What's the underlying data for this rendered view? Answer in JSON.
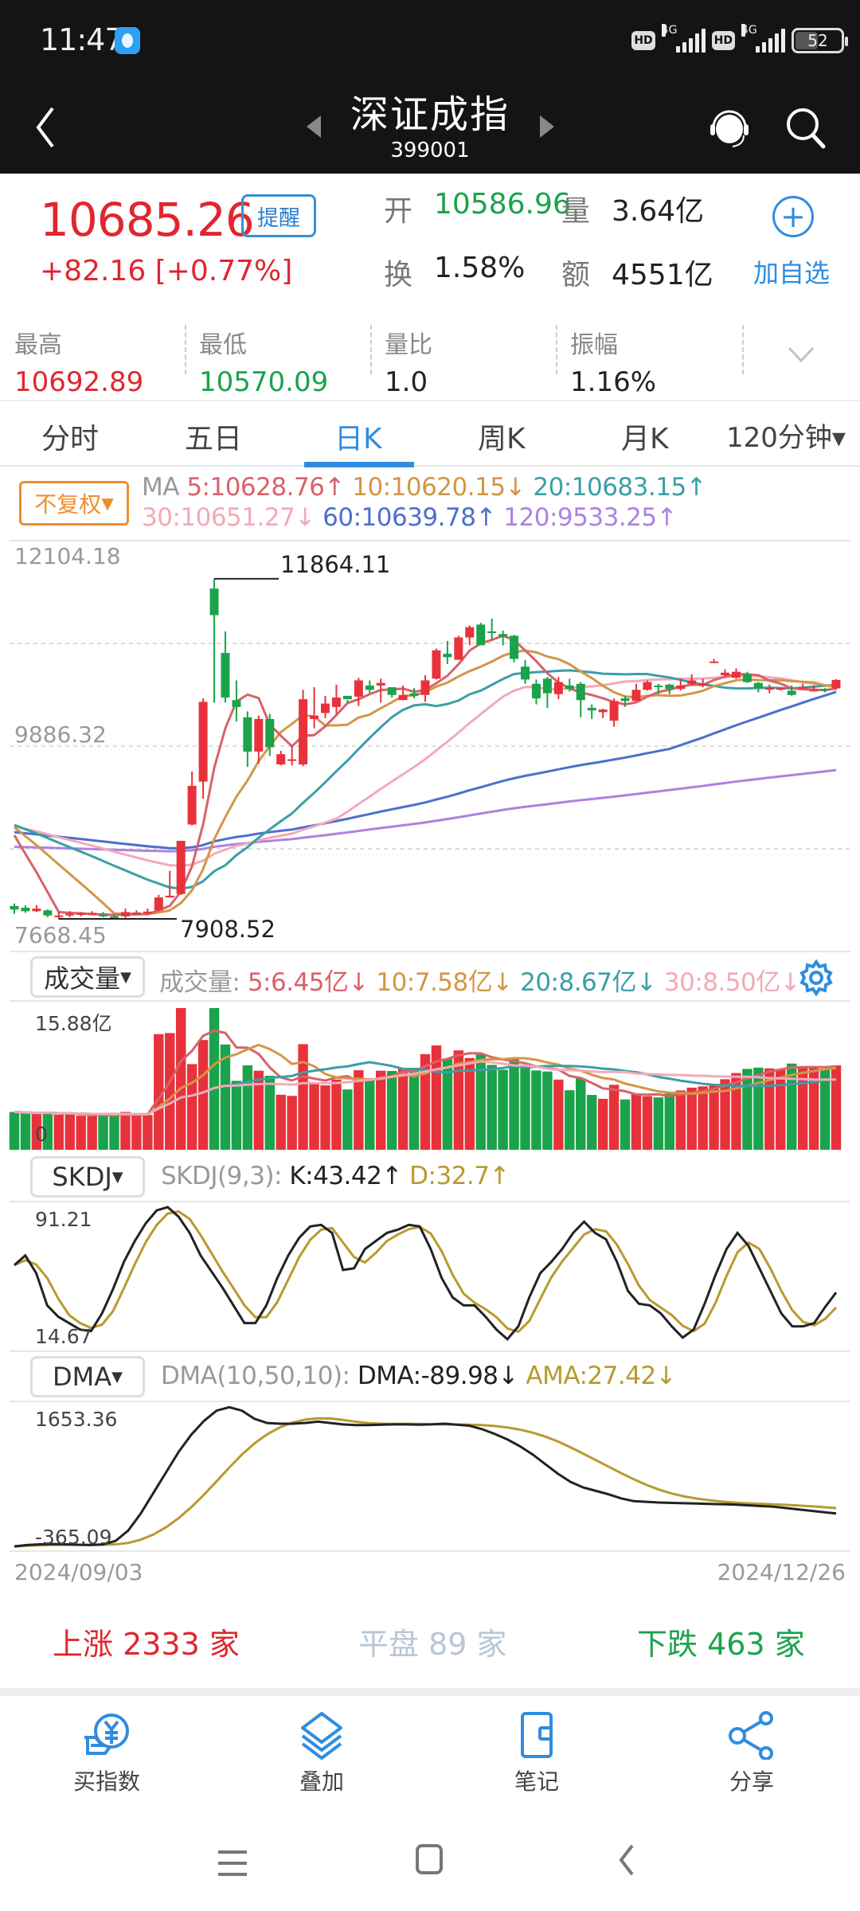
{
  "status_bar": {
    "time": "11:47",
    "hd1": "HD",
    "net1": "4G",
    "hd2": "HD",
    "net2": "4G",
    "battery": "52"
  },
  "nav": {
    "title": "深证成指",
    "code": "399001"
  },
  "quote": {
    "price": "10685.26",
    "remind_label": "提醒",
    "change": "+82.16",
    "change_pct": "[+0.77%]",
    "open_label": "开",
    "open": "10586.96",
    "volume_label": "量",
    "volume": "3.64亿",
    "turnover_label": "换",
    "turnover": "1.58%",
    "amount_label": "额",
    "amount": "4551亿",
    "add_watch_label": "加自选",
    "stats": [
      {
        "label": "最高",
        "value": "10692.89",
        "color": "#e0262e"
      },
      {
        "label": "最低",
        "value": "10570.09",
        "color": "#1aa34a"
      },
      {
        "label": "量比",
        "value": "1.0",
        "color": "#222"
      },
      {
        "label": "振幅",
        "value": "1.16%",
        "color": "#222"
      }
    ]
  },
  "tabs": [
    {
      "label": "分时",
      "active": false
    },
    {
      "label": "五日",
      "active": false
    },
    {
      "label": "日K",
      "active": true
    },
    {
      "label": "周K",
      "active": false
    },
    {
      "label": "月K",
      "active": false
    },
    {
      "label": "120分钟▾",
      "active": false
    }
  ],
  "adjust_label": "不复权",
  "ma_legend": {
    "prefix": "MA",
    "items": [
      {
        "text": "5:10628.76↑",
        "color": "#d8626a"
      },
      {
        "text": "10:10620.15↓",
        "color": "#d39646"
      },
      {
        "text": "20:10683.15↑",
        "color": "#3a9fa6"
      },
      {
        "text": "30:10651.27↓",
        "color": "#f3a9b8"
      },
      {
        "text": "60:10639.78↑",
        "color": "#4c6fcf"
      },
      {
        "text": "120:9533.25↑",
        "color": "#ad82e0"
      }
    ]
  },
  "volume_legend": {
    "button": "成交量",
    "prefix": "成交量:",
    "items": [
      {
        "text": "5:6.45亿↓",
        "color": "#d8626a"
      },
      {
        "text": "10:7.58亿↓",
        "color": "#d39646"
      },
      {
        "text": "20:8.67亿↓",
        "color": "#3a9fa6"
      },
      {
        "text": "30:8.50亿↓",
        "color": "#f3a9b8"
      }
    ],
    "max_label": "15.88亿",
    "zero_label": "0"
  },
  "skdj_legend": {
    "button": "SKDJ",
    "prefix": "SKDJ(9,3):",
    "k": {
      "text": "K:43.42↑",
      "color": "#222"
    },
    "d": {
      "text": "D:32.7↑",
      "color": "#b89a2e"
    },
    "max_label": "91.21",
    "min_label": "14.67"
  },
  "dma_legend": {
    "button": "DMA",
    "prefix": "DMA(10,50,10):",
    "dma": {
      "text": "DMA:-89.98↓",
      "color": "#222"
    },
    "ama": {
      "text": "AMA:27.42↓",
      "color": "#b89a2e"
    },
    "max_label": "1653.36",
    "min_label": "-365.09"
  },
  "date_range": {
    "start": "2024/09/03",
    "end": "2024/12/26"
  },
  "breadth": {
    "up": "上涨 2333 家",
    "flat": "平盘 89 家",
    "down": "下跌 463 家"
  },
  "bottom_bar": [
    {
      "label": "买指数",
      "icon": "buy-index-icon"
    },
    {
      "label": "叠加",
      "icon": "layers-icon"
    },
    {
      "label": "笔记",
      "icon": "notebook-icon"
    },
    {
      "label": "分享",
      "icon": "share-icon"
    }
  ],
  "colors": {
    "up": "#e8323b",
    "down": "#1aa34a",
    "accent": "#2f8de0"
  },
  "chart_data": [
    {
      "type": "candlestick",
      "title": "深证成指 日K",
      "y_axis_labels": [
        "12104.18",
        "9886.32",
        "7668.45"
      ],
      "ylim": [
        7668.45,
        12104.18
      ],
      "annotations": [
        {
          "text": "11864.11",
          "type": "high"
        },
        {
          "text": "7908.52",
          "type": "low"
        }
      ],
      "x_range": [
        "2024/09/03",
        "2024/12/26"
      ],
      "candles": [
        [
          8050,
          8010,
          8080,
          7960
        ],
        [
          8030,
          7990,
          8060,
          7970
        ],
        [
          7990,
          8020,
          8060,
          7980
        ],
        [
          8000,
          7940,
          8010,
          7920
        ],
        [
          7935,
          7940,
          7980,
          7900
        ],
        [
          7940,
          7960,
          7990,
          7920
        ],
        [
          7960,
          7965,
          7980,
          7930
        ],
        [
          7960,
          7970,
          7990,
          7950
        ],
        [
          7950,
          7930,
          7980,
          7920
        ],
        [
          7930,
          7910,
          7950,
          7908.52
        ],
        [
          7930,
          7980,
          8020,
          7910
        ],
        [
          7970,
          7975,
          8000,
          7950
        ],
        [
          7980,
          7985,
          8020,
          7950
        ],
        [
          8000,
          8150,
          8180,
          7990
        ],
        [
          8150,
          8170,
          8460,
          8160
        ],
        [
          8190,
          8810,
          8810,
          8180
        ],
        [
          9000,
          9450,
          9620,
          8990
        ],
        [
          9500,
          10430,
          10470,
          9300
        ],
        [
          11750,
          11440,
          11864.11,
          10420
        ],
        [
          11000,
          10480,
          11250,
          10420
        ],
        [
          10450,
          10370,
          10680,
          10200
        ],
        [
          10250,
          9850,
          10320,
          9670
        ],
        [
          9850,
          10230,
          10270,
          9710
        ],
        [
          10230,
          9900,
          10290,
          9800
        ],
        [
          9700,
          9820,
          9860,
          9690
        ],
        [
          9750,
          9760,
          9920,
          9690
        ],
        [
          9700,
          10460,
          10570,
          9680
        ],
        [
          10230,
          10270,
          10600,
          10120
        ],
        [
          10300,
          10410,
          10500,
          10240
        ],
        [
          10370,
          10480,
          10630,
          10290
        ],
        [
          10500,
          10460,
          10450,
          10410
        ],
        [
          10490,
          10680,
          10710,
          10380
        ],
        [
          10620,
          10570,
          10680,
          10530
        ],
        [
          10620,
          10650,
          10700,
          10420
        ],
        [
          10600,
          10510,
          10600,
          10480
        ],
        [
          10450,
          10510,
          10620,
          10480
        ],
        [
          10530,
          10500,
          10590,
          10470
        ],
        [
          10510,
          10680,
          10740,
          10430
        ],
        [
          10700,
          11030,
          11050,
          10690
        ],
        [
          10990,
          10950,
          11140,
          10870
        ],
        [
          10920,
          11180,
          11200,
          10920
        ],
        [
          11180,
          11300,
          11320,
          11090
        ],
        [
          11330,
          11090,
          11350,
          11100
        ],
        [
          11250,
          11240,
          11400,
          11150
        ],
        [
          11220,
          11190,
          11260,
          11090
        ],
        [
          11200,
          10930,
          11210,
          10890
        ],
        [
          10840,
          10690,
          10920,
          10640
        ],
        [
          10640,
          10470,
          10690,
          10400
        ],
        [
          10700,
          10530,
          10720,
          10360
        ],
        [
          10520,
          10660,
          10720,
          10460
        ],
        [
          10620,
          10580,
          10700,
          10550
        ],
        [
          10640,
          10450,
          10660,
          10250
        ],
        [
          10360,
          10330,
          10400,
          10230
        ],
        [
          10310,
          10340,
          10350,
          10240
        ],
        [
          10210,
          10440,
          10470,
          10140
        ],
        [
          10470,
          10440,
          10500,
          10370
        ],
        [
          10440,
          10570,
          10640,
          10470
        ],
        [
          10570,
          10660,
          10680,
          10560
        ],
        [
          10620,
          10610,
          10640,
          10520
        ],
        [
          10630,
          10580,
          10640,
          10520
        ],
        [
          10580,
          10620,
          10700,
          10560
        ],
        [
          10640,
          10680,
          10750,
          10620
        ],
        [
          10630,
          10640,
          10700,
          10600
        ],
        [
          10900,
          10900,
          10930,
          10900
        ],
        [
          10740,
          10770,
          10810,
          10730
        ],
        [
          10710,
          10780,
          10820,
          10700
        ],
        [
          10750,
          10660,
          10780,
          10650
        ],
        [
          10650,
          10590,
          10660,
          10540
        ],
        [
          10590,
          10590,
          10630,
          10530
        ],
        [
          10580,
          10590,
          10590,
          10560
        ],
        [
          10560,
          10510,
          10620,
          10500
        ],
        [
          10590,
          10600,
          10640,
          10580
        ],
        [
          10570,
          10570,
          10620,
          10550
        ],
        [
          10580,
          10560,
          10590,
          10540
        ],
        [
          10586.96,
          10685.26,
          10692.89,
          10570.09
        ]
      ],
      "ma_lines": {
        "MA5": "rising from ~7950 to peak ~10900 then oscillating 10400-11150, last 10628.76",
        "MA10": "last 10620.15",
        "MA20": "last 10683.15",
        "MA30": "last 10651.27",
        "MA60": "rising steadily from ~8700 to 10639.78",
        "MA120": "slow rise from ~8900 to 9533.25"
      }
    },
    {
      "type": "bar",
      "title": "成交量",
      "ylim": [
        0,
        15.88
      ],
      "unit": "亿"
    },
    {
      "type": "line",
      "title": "SKDJ(9,3)",
      "ylim": [
        14.67,
        91.21
      ],
      "series": [
        {
          "name": "K",
          "last": 43.42
        },
        {
          "name": "D",
          "last": 32.7
        }
      ]
    },
    {
      "type": "line",
      "title": "DMA(10,50,10)",
      "ylim": [
        -365.09,
        1653.36
      ],
      "series": [
        {
          "name": "DMA",
          "last": -89.98
        },
        {
          "name": "AMA",
          "last": 27.42
        }
      ]
    }
  ]
}
